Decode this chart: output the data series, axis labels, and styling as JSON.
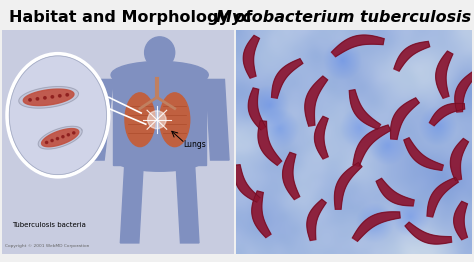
{
  "title_regular": "Habitat and Morphology of ",
  "title_italic": "Mycobacterium tuberculosis",
  "title_fontsize": 11.5,
  "title_color": "#000000",
  "bg_color": "#f0f0f0",
  "fig_width": 4.74,
  "fig_height": 2.62,
  "dpi": 100,
  "label_lungs": "Lungs",
  "label_bacteria": "Tuberculosis bacteria",
  "label_copyright": "Copyright © 2001 WebMD Corporation",
  "bacteria_color_dark": "#7a1020",
  "bacteria_color_mid": "#a0203a",
  "left_bg": "#c8cce0",
  "body_color": "#8090c0",
  "oval_bg": "#d0d4e8",
  "lung_color": "#c06040",
  "right_bg_base": "#b8cce0",
  "bacteria_rods": [
    [
      0.08,
      0.88,
      85,
      0.18,
      0.022
    ],
    [
      0.22,
      0.78,
      55,
      0.2,
      0.02
    ],
    [
      0.52,
      0.92,
      15,
      0.22,
      0.022
    ],
    [
      0.75,
      0.88,
      40,
      0.18,
      0.02
    ],
    [
      0.9,
      0.8,
      85,
      0.2,
      0.022
    ],
    [
      0.1,
      0.65,
      100,
      0.18,
      0.02
    ],
    [
      0.35,
      0.68,
      75,
      0.22,
      0.022
    ],
    [
      0.55,
      0.65,
      125,
      0.2,
      0.02
    ],
    [
      0.72,
      0.6,
      60,
      0.2,
      0.022
    ],
    [
      0.9,
      0.62,
      30,
      0.16,
      0.02
    ],
    [
      0.15,
      0.5,
      110,
      0.2,
      0.022
    ],
    [
      0.38,
      0.52,
      90,
      0.18,
      0.02
    ],
    [
      0.58,
      0.48,
      50,
      0.22,
      0.022
    ],
    [
      0.8,
      0.45,
      140,
      0.2,
      0.02
    ],
    [
      0.96,
      0.42,
      80,
      0.18,
      0.022
    ],
    [
      0.05,
      0.32,
      120,
      0.18,
      0.02
    ],
    [
      0.25,
      0.35,
      95,
      0.2,
      0.022
    ],
    [
      0.48,
      0.3,
      65,
      0.22,
      0.02
    ],
    [
      0.68,
      0.28,
      145,
      0.18,
      0.022
    ],
    [
      0.88,
      0.25,
      55,
      0.2,
      0.02
    ],
    [
      0.12,
      0.18,
      100,
      0.2,
      0.022
    ],
    [
      0.35,
      0.15,
      75,
      0.18,
      0.02
    ],
    [
      0.6,
      0.12,
      30,
      0.22,
      0.022
    ],
    [
      0.82,
      0.1,
      160,
      0.2,
      0.02
    ],
    [
      0.97,
      0.15,
      90,
      0.16,
      0.022
    ],
    [
      0.98,
      0.72,
      70,
      0.18,
      0.02
    ]
  ]
}
